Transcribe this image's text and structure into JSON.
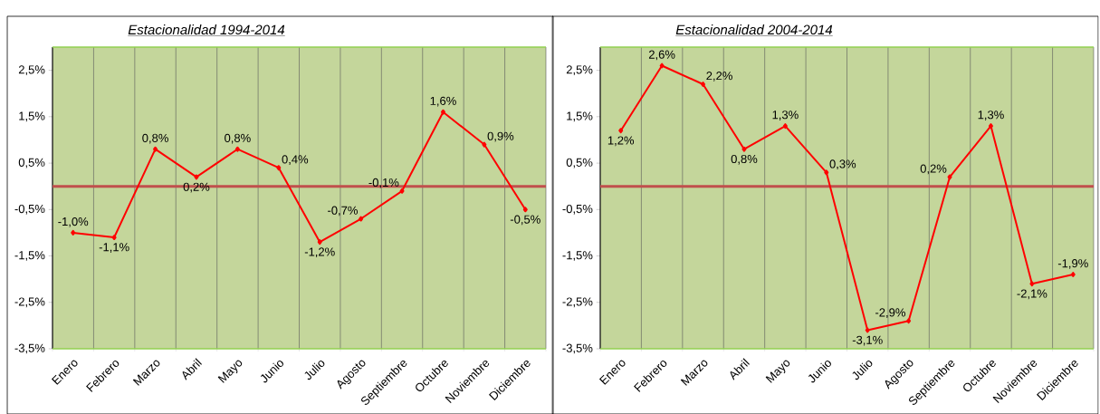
{
  "chart_data": [
    {
      "type": "line",
      "title": "Estacionalidad 1994-2014",
      "categories": [
        "Enero",
        "Febrero",
        "Marzo",
        "Abril",
        "Mayo",
        "Junio",
        "Julio",
        "Agosto",
        "Septiembre",
        "Octubre",
        "Noviembre",
        "Diciembre"
      ],
      "values": [
        -1.0,
        -1.1,
        0.8,
        0.2,
        0.8,
        0.4,
        -1.2,
        -0.7,
        -0.1,
        1.6,
        0.9,
        -0.5
      ],
      "value_labels": [
        "-1,0%",
        "-1,1%",
        "0,8%",
        "0,2%",
        "0,8%",
        "0,4%",
        "-1,2%",
        "-0,7%",
        "-0,1%",
        "1,6%",
        "0,9%",
        "-0,5%"
      ],
      "color": "#ff0000",
      "marker": "diamond",
      "grid": "x",
      "ylim": [
        -3.5,
        3.0
      ],
      "ref_lines": [
        {
          "axis": "y",
          "value": 0,
          "color": "#c0504d"
        }
      ],
      "yticks": [
        {
          "value": -3.5,
          "label": "-3,5%"
        },
        {
          "value": -2.5,
          "label": "-2,5%"
        },
        {
          "value": -1.5,
          "label": "-1,5%"
        },
        {
          "value": -0.5,
          "label": "-0,5%"
        },
        {
          "value": 0.5,
          "label": "0,5%"
        },
        {
          "value": 1.5,
          "label": "1,5%"
        },
        {
          "value": 2.5,
          "label": "2,5%"
        }
      ]
    },
    {
      "type": "line",
      "title": "Estacionalidad 2004-2014",
      "categories": [
        "Enero",
        "Febrero",
        "Marzo",
        "Abril",
        "Mayo",
        "Junio",
        "Julio",
        "Agosto",
        "Septiembre",
        "Octubre",
        "Noviembre",
        "Diciembre"
      ],
      "values": [
        1.2,
        2.6,
        2.2,
        0.8,
        1.3,
        0.3,
        -3.1,
        -2.9,
        0.2,
        1.3,
        -2.1,
        -1.9
      ],
      "value_labels": [
        "1,2%",
        "2,6%",
        "2,2%",
        "0,8%",
        "1,3%",
        "0,3%",
        "-3,1%",
        "-2,9%",
        "0,2%",
        "1,3%",
        "-2,1%",
        "-1,9%"
      ],
      "color": "#ff0000",
      "marker": "diamond",
      "grid": "x",
      "ylim": [
        -3.5,
        3.0
      ],
      "ref_lines": [
        {
          "axis": "y",
          "value": 0,
          "color": "#c0504d"
        }
      ],
      "yticks": [
        {
          "value": -3.5,
          "label": "-3,5%"
        },
        {
          "value": -2.5,
          "label": "-2,5%"
        },
        {
          "value": -1.5,
          "label": "-1,5%"
        },
        {
          "value": -0.5,
          "label": "-0,5%"
        },
        {
          "value": 0.5,
          "label": "0,5%"
        },
        {
          "value": 1.5,
          "label": "1,5%"
        },
        {
          "value": 2.5,
          "label": "2,5%"
        }
      ]
    }
  ]
}
